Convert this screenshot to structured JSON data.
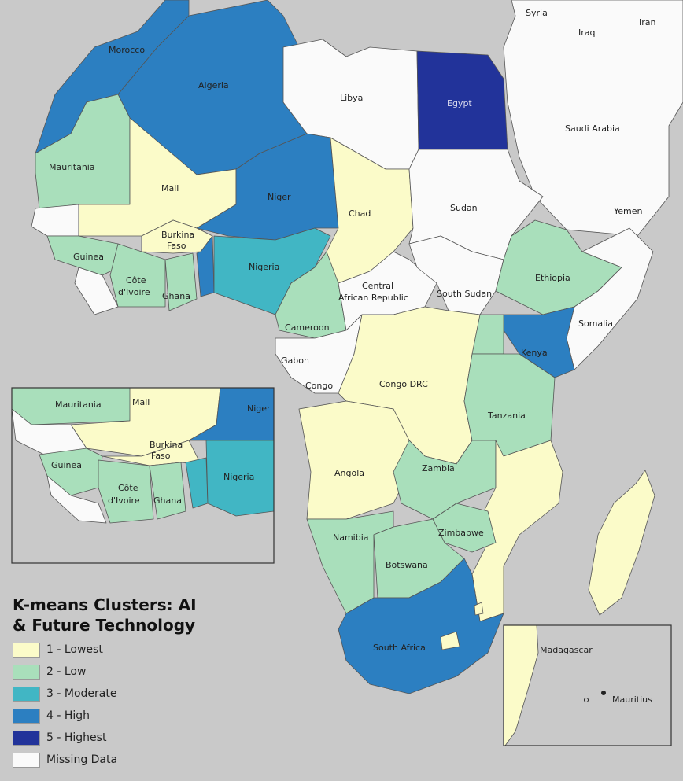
{
  "legend": {
    "title_line1": "K-means Clusters: AI",
    "title_line2": "& Future Technology",
    "items": [
      {
        "label": "1 - Lowest",
        "color": "#fbfbc9"
      },
      {
        "label": "2 - Low",
        "color": "#a9dfbb"
      },
      {
        "label": "3 - Moderate",
        "color": "#41b6c4"
      },
      {
        "label": "4 - High",
        "color": "#2c7fc1"
      },
      {
        "label": "5 - Highest",
        "color": "#22339a"
      },
      {
        "label": "Missing Data",
        "color": "#fafafa"
      }
    ]
  },
  "colors": {
    "ocean": "#c9c9c9",
    "border": "#555555"
  },
  "countries": {
    "morocco": {
      "label": "Morocco",
      "cluster": 4
    },
    "algeria": {
      "label": "Algeria",
      "cluster": 4
    },
    "libya": {
      "label": "Libya",
      "cluster": 0
    },
    "egypt": {
      "label": "Egypt",
      "cluster": 5
    },
    "mauritania": {
      "label": "Mauritania",
      "cluster": 2
    },
    "mali": {
      "label": "Mali",
      "cluster": 1
    },
    "niger": {
      "label": "Niger",
      "cluster": 4
    },
    "chad": {
      "label": "Chad",
      "cluster": 1
    },
    "sudan": {
      "label": "Sudan",
      "cluster": 0
    },
    "burkina": {
      "label1": "Burkina",
      "label2": "Faso",
      "cluster": 1
    },
    "guinea": {
      "label": "Guinea",
      "cluster": 2
    },
    "cotedivoire": {
      "label1": "Côte",
      "label2": "d'Ivoire",
      "cluster": 2
    },
    "ghana": {
      "label": "Ghana",
      "cluster": 2
    },
    "nigeria": {
      "label": "Nigeria",
      "cluster": 3
    },
    "cameroon": {
      "label": "Cameroon",
      "cluster": 2
    },
    "car": {
      "label1": "Central",
      "label2": "African Republic",
      "cluster": 0
    },
    "southsudan": {
      "label": "South Sudan",
      "cluster": 0
    },
    "ethiopia": {
      "label": "Ethiopia",
      "cluster": 2
    },
    "somalia": {
      "label": "Somalia",
      "cluster": 0
    },
    "kenya": {
      "label": "Kenya",
      "cluster": 4
    },
    "gabon": {
      "label": "Gabon",
      "cluster": 0
    },
    "congo": {
      "label": "Congo",
      "cluster": 0
    },
    "drc": {
      "label": "Congo DRC",
      "cluster": 1
    },
    "tanzania": {
      "label": "Tanzania",
      "cluster": 2
    },
    "angola": {
      "label": "Angola",
      "cluster": 1
    },
    "zambia": {
      "label": "Zambia",
      "cluster": 2
    },
    "zimbabwe": {
      "label": "Zimbabwe",
      "cluster": 2
    },
    "namibia": {
      "label": "Namibia",
      "cluster": 2
    },
    "botswana": {
      "label": "Botswana",
      "cluster": 2
    },
    "southafrica": {
      "label": "South Africa",
      "cluster": 4
    },
    "madagascar": {
      "label": "Madagascar",
      "cluster": 1
    },
    "mauritius": {
      "label": "Mauritius",
      "cluster": 0
    }
  },
  "other_labels": {
    "syria": "Syria",
    "iraq": "Iraq",
    "iran": "Iran",
    "saudi": "Saudi Arabia",
    "yemen": "Yemen"
  }
}
